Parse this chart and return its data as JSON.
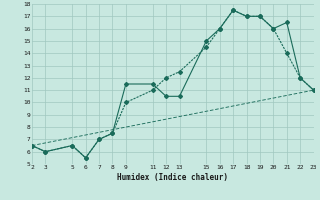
{
  "xlabel": "Humidex (Indice chaleur)",
  "bg_color": "#c8e8e0",
  "grid_color": "#a0c8c0",
  "line_color": "#1a6b5a",
  "xlim": [
    2,
    23
  ],
  "ylim": [
    5,
    18
  ],
  "xticks": [
    2,
    3,
    5,
    6,
    7,
    8,
    9,
    11,
    12,
    13,
    15,
    16,
    17,
    18,
    19,
    20,
    21,
    22,
    23
  ],
  "yticks": [
    5,
    6,
    7,
    8,
    9,
    10,
    11,
    12,
    13,
    14,
    15,
    16,
    17,
    18
  ],
  "line1_x": [
    2,
    3,
    5,
    6,
    7,
    8,
    9,
    11,
    12,
    13,
    15,
    16,
    17,
    18,
    19,
    20,
    21,
    22,
    23
  ],
  "line1_y": [
    6.5,
    6.0,
    6.5,
    5.5,
    7.0,
    7.5,
    11.5,
    11.5,
    10.5,
    10.5,
    15.0,
    16.0,
    17.5,
    17.0,
    17.0,
    16.0,
    16.5,
    12.0,
    11.0
  ],
  "line2_x": [
    2,
    3,
    5,
    6,
    7,
    8,
    9,
    11,
    12,
    13,
    15,
    16,
    17,
    18,
    19,
    20,
    21,
    22,
    23
  ],
  "line2_y": [
    6.5,
    6.0,
    6.5,
    5.5,
    7.0,
    7.5,
    10.0,
    11.0,
    12.0,
    12.5,
    14.5,
    16.0,
    17.5,
    17.0,
    17.0,
    16.0,
    14.0,
    12.0,
    11.0
  ],
  "line3_x": [
    2,
    23
  ],
  "line3_y": [
    6.5,
    11.0
  ],
  "marker_size": 2.0,
  "line_width": 0.8
}
